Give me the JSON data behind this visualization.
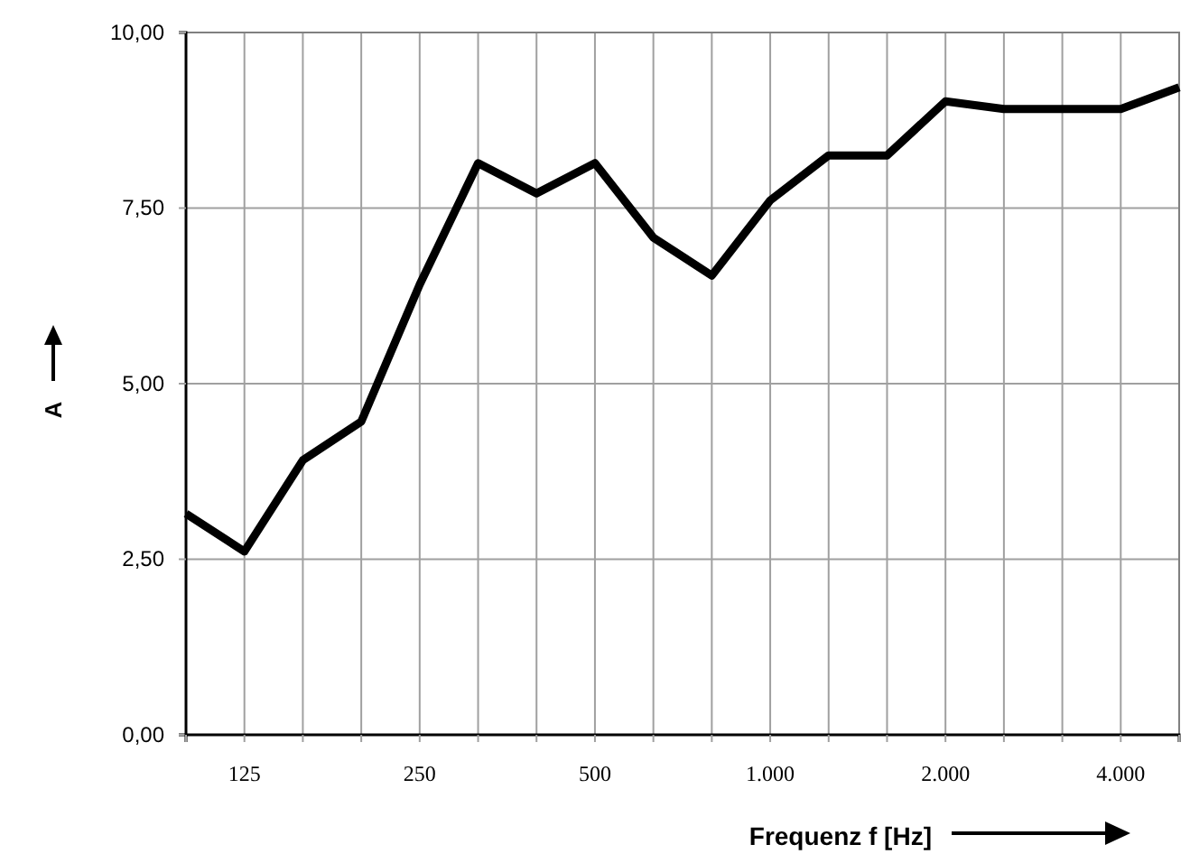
{
  "chart_data": {
    "type": "line",
    "xlabel": "Frequenz f [Hz]",
    "ylabel": "A",
    "categories": [
      null,
      "125",
      null,
      null,
      "250",
      null,
      null,
      "500",
      null,
      null,
      "1.000",
      null,
      null,
      "2.000",
      null,
      null,
      "4.000",
      null
    ],
    "series": [
      {
        "color": "#000000",
        "values": [
          3.15,
          2.61,
          3.91,
          4.46,
          6.41,
          8.14,
          7.71,
          8.14,
          7.08,
          6.54,
          7.61,
          8.25,
          8.25,
          9.02,
          8.91,
          8.91,
          8.91,
          9.22
        ]
      }
    ],
    "ylim": [
      0,
      10
    ],
    "yticks": [
      {
        "value": 0,
        "label": "0,00"
      },
      {
        "value": 2.5,
        "label": "2,50"
      },
      {
        "value": 5,
        "label": "5,00"
      },
      {
        "value": 7.5,
        "label": "7,50"
      },
      {
        "value": 10,
        "label": "10,00"
      }
    ],
    "grid": true,
    "marker": "none",
    "line_style": "solid"
  }
}
